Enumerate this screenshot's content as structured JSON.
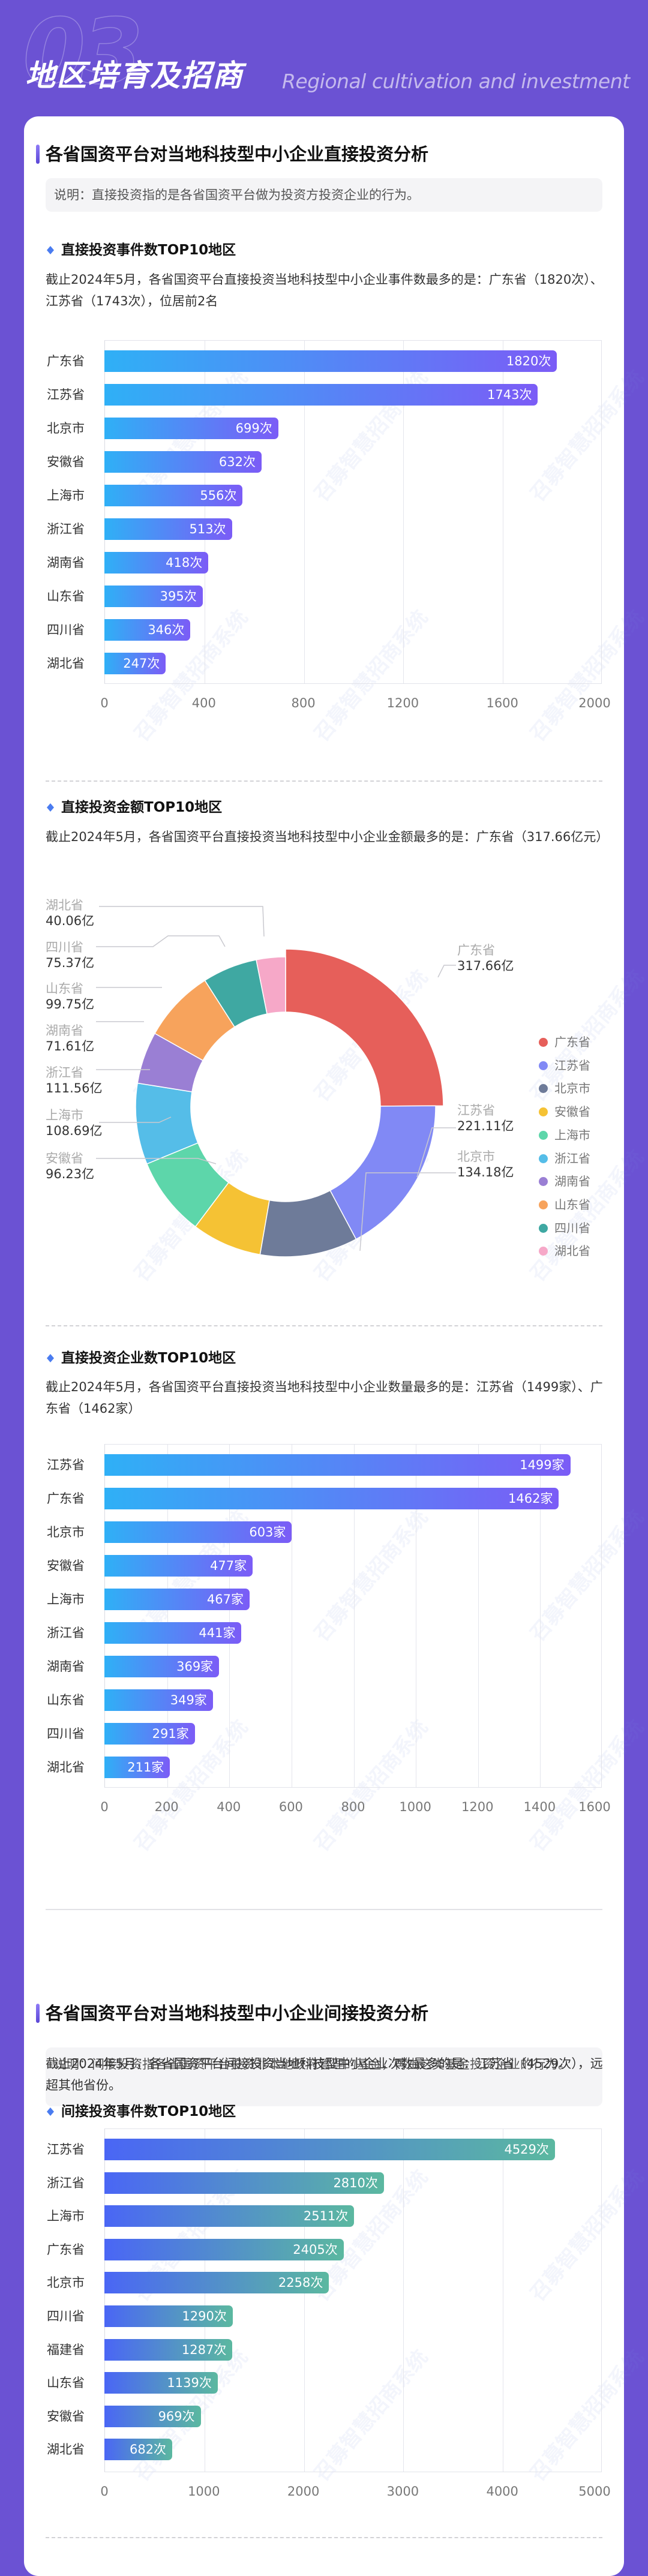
{
  "header": {
    "number": "03",
    "title": "地区培育及招商",
    "subtitle": "Regional cultivation and investment"
  },
  "section1": {
    "title": "各省国资平台对当地科技型中小企业直接投资分析",
    "note": "说明：直接投资指的是各省国资平台做为投资方投资企业的行为。"
  },
  "section2": {
    "title": "各省国资平台对当地科技型中小企业间接投资分析",
    "note": "说明：间接投资指各省国资平台投资非本地政府管理的基金，再由这类基金投资企业的行为。"
  },
  "watermark": "召募智慧招商系统",
  "colors": {
    "page_bg": "#6b52d3",
    "bar_gradient_1": [
      "#2fb0f6",
      "#7b5cf6"
    ],
    "bar_gradient_2": [
      "#4a66f5",
      "#5bb8a0"
    ]
  },
  "chart_data": [
    {
      "type": "bar",
      "orientation": "horizontal",
      "title": "直接投资事件数TOP10地区",
      "description": "截止2024年5月，各省国资平台直接投资当地科技型中小企业事件数最多的是：广东省（1820次）、江苏省（1743次），位居前2名",
      "categories": [
        "广东省",
        "江苏省",
        "北京市",
        "安徽省",
        "上海市",
        "浙江省",
        "湖南省",
        "山东省",
        "四川省",
        "湖北省"
      ],
      "values": [
        1820,
        1743,
        699,
        632,
        556,
        513,
        418,
        395,
        346,
        247
      ],
      "labels": [
        "1820次",
        "1743次",
        "699次",
        "632次",
        "556次",
        "513次",
        "418次",
        "395次",
        "346次",
        "247次"
      ],
      "unit": "次",
      "xticks": [
        "0",
        "400",
        "800",
        "1200",
        "1600",
        "2000"
      ],
      "xlim": [
        0,
        2000
      ],
      "grid": true
    },
    {
      "type": "pie",
      "variant": "donut",
      "title": "直接投资金额TOP10地区",
      "description": "截止2024年5月，各省国资平台直接投资当地科技型中小企业金额最多的是：广东省（317.66亿元）",
      "categories": [
        "广东省",
        "江苏省",
        "北京市",
        "安徽省",
        "上海市",
        "浙江省",
        "湖南省",
        "山东省",
        "四川省",
        "湖北省"
      ],
      "values": [
        317.66,
        221.11,
        134.18,
        96.23,
        108.69,
        111.56,
        71.61,
        99.75,
        75.37,
        40.06
      ],
      "labels": [
        "317.66亿",
        "221.11亿",
        "134.18亿",
        "96.23亿",
        "108.69亿",
        "111.56亿",
        "71.61亿",
        "99.75亿",
        "75.37亿",
        "40.06亿"
      ],
      "unit": "亿",
      "colors": [
        "#e65f5a",
        "#8189f5",
        "#6e7b99",
        "#f5c234",
        "#5dd6aa",
        "#55bde8",
        "#9a7fd4",
        "#f7a35c",
        "#3fa8a2",
        "#f6a8c8"
      ],
      "legend": {
        "position": "right",
        "entries": [
          "广东省",
          "江苏省",
          "北京市",
          "安徽省",
          "上海市",
          "浙江省",
          "湖南省",
          "山东省",
          "四川省",
          "湖北省"
        ]
      }
    },
    {
      "type": "bar",
      "orientation": "horizontal",
      "title": "直接投资企业数TOP10地区",
      "description": "截止2024年5月，各省国资平台直接投资当地科技型中小企业数量最多的是：江苏省（1499家）、广东省（1462家）",
      "categories": [
        "江苏省",
        "广东省",
        "北京市",
        "安徽省",
        "上海市",
        "浙江省",
        "湖南省",
        "山东省",
        "四川省",
        "湖北省"
      ],
      "values": [
        1499,
        1462,
        603,
        477,
        467,
        441,
        369,
        349,
        291,
        211
      ],
      "labels": [
        "1499家",
        "1462家",
        "603家",
        "477家",
        "467家",
        "441家",
        "369家",
        "349家",
        "291家",
        "211家"
      ],
      "unit": "家",
      "xticks": [
        "0",
        "200",
        "400",
        "600",
        "800",
        "1000",
        "1200",
        "1400",
        "1600"
      ],
      "xlim": [
        0,
        1600
      ],
      "grid": true
    },
    {
      "type": "bar",
      "orientation": "horizontal",
      "title": "间接投资事件数TOP10地区",
      "description": "截止2024年5月，各省国资平台间接投资当地科技型中小企业次数最多的是：江苏省（4529次），远超其他省份。",
      "categories": [
        "江苏省",
        "浙江省",
        "上海市",
        "广东省",
        "北京市",
        "四川省",
        "福建省",
        "山东省",
        "安徽省",
        "湖北省"
      ],
      "values": [
        4529,
        2810,
        2511,
        2405,
        2258,
        1290,
        1287,
        1139,
        969,
        682
      ],
      "labels": [
        "4529次",
        "2810次",
        "2511次",
        "2405次",
        "2258次",
        "1290次",
        "1287次",
        "1139次",
        "969次",
        "682次"
      ],
      "unit": "次",
      "xticks": [
        "0",
        "1000",
        "2000",
        "3000",
        "4000",
        "5000"
      ],
      "xlim": [
        0,
        5000
      ],
      "grid": true
    }
  ]
}
